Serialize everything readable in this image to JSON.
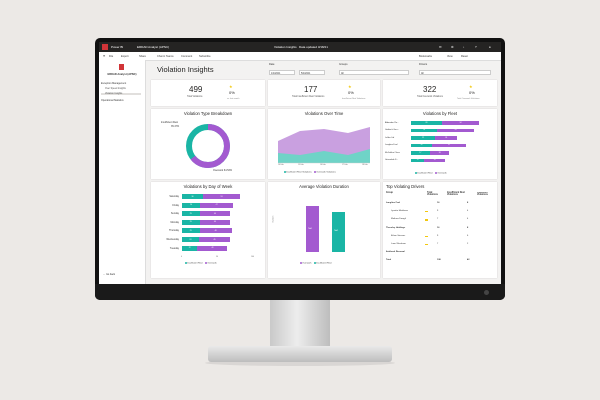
{
  "app": {
    "brand": "Power BI",
    "workspace": "ERDAD Analyst (APNC)",
    "report_title": "Violation Insights",
    "updated": "Data updated 3/18/21",
    "file": "File",
    "export": "Export",
    "share": "Share",
    "chat": "Chat in Teams",
    "comment": "Comment",
    "subscribe": "Subscribe",
    "bookmarks": "Bookmarks",
    "view": "View",
    "reset": "Reset"
  },
  "nav": {
    "title": "ERDAD Analyst (APNC)",
    "section1": "Exception Management",
    "item1": "Over Speed Insights",
    "item2": "Violation Insights",
    "section2": "Operational Statistics",
    "back": "Go back"
  },
  "page": {
    "title": "Violation Insights"
  },
  "slicers": {
    "date_label": "Date",
    "date_from": "1/4/2021",
    "date_to": "5/4/2021",
    "groups_label": "Groups",
    "groups_value": "All",
    "drivers_label": "Drivers",
    "drivers_value": "All"
  },
  "kpis": [
    {
      "value": "499",
      "label": "Total Violations",
      "pct": "0%",
      "sub": "vs. last month"
    },
    {
      "value": "177",
      "label": "Total Insufficient Rest Violations",
      "pct": "0%",
      "sub": "Insufficient Rest Violations"
    },
    {
      "value": "322",
      "label": "Total Overwork Violations",
      "pct": "0%",
      "sub": "Total Overwork Violations"
    }
  ],
  "breakdown": {
    "title": "Violation Type Breakdown",
    "insufficient_label": "Insufficient Rest",
    "insufficient_pct": "35.47%",
    "overwork_label": "Overwork 64.53%"
  },
  "over_time": {
    "title": "Violations Over Time",
    "legend1": "Insufficient Rest Violations",
    "legend2": "Overwork Violations",
    "x_labels": [
      "14 Feb",
      "15 Feb",
      "16 Feb",
      "17 Feb",
      "18 Feb"
    ]
  },
  "by_fleet": {
    "title": "Violations by Fleet",
    "rows": [
      {
        "name": "Aldenden Ra...",
        "a": "28",
        "b": "34"
      },
      {
        "name": "Gatbirch Gen...",
        "a": "24",
        "b": "33"
      },
      {
        "name": "Leffen Ltd",
        "a": "22",
        "b": "20"
      },
      {
        "name": "Langline Fuel",
        "a": "19",
        "b": "31"
      },
      {
        "name": "McGuffee Class",
        "a": "17",
        "b": "18"
      },
      {
        "name": "Grimsdale S...",
        "a": "12",
        "b": "19"
      }
    ],
    "legend1": "Insufficient Rest",
    "legend2": "Overwork"
  },
  "by_day": {
    "title": "Violations by Day of Week",
    "rows": [
      {
        "day": "Saturday",
        "a": "30",
        "b": "53"
      },
      {
        "day": "Friday",
        "a": "26",
        "b": "47"
      },
      {
        "day": "Sunday",
        "a": "25",
        "b": "44"
      },
      {
        "day": "Monday",
        "a": "25",
        "b": "44"
      },
      {
        "day": "Thursday",
        "a": "25",
        "b": "46"
      },
      {
        "day": "Wednesday",
        "a": "24",
        "b": "45"
      },
      {
        "day": "Tuesday",
        "a": "22",
        "b": "43"
      }
    ],
    "axis": [
      "0",
      "50",
      "100"
    ],
    "legend1": "Insufficient Rest",
    "legend2": "Overwork"
  },
  "avg_duration": {
    "title": "Average Violation Duration",
    "bar1": "Tbd1",
    "bar2": "Tbd2",
    "ylabel": "Duration",
    "legend1": "Overwork",
    "legend2": "Insufficient Rest"
  },
  "top_drivers": {
    "title": "Top Violating Drivers",
    "cols": [
      "Group",
      "Total Violations",
      "Insufficient Rest Violations",
      "Overwork Violations"
    ],
    "rows": [
      {
        "name": "Langline Fuel",
        "total": "16",
        "rest": "8",
        "over": "",
        "group": true
      },
      {
        "name": "Lynette Matthews",
        "total": "9",
        "rest": "4",
        "over": "",
        "group": false
      },
      {
        "name": "Mathew Dowgil",
        "total": "7",
        "rest": "4",
        "over": "",
        "group": false
      },
      {
        "name": "Thornley Holdings",
        "total": "16",
        "rest": "8",
        "over": "",
        "group": true
      },
      {
        "name": "Ethan Stevens",
        "total": "9",
        "rest": "6",
        "over": "",
        "group": false
      },
      {
        "name": "Luan Wrexham",
        "total": "7",
        "rest": "2",
        "over": "",
        "group": false
      },
      {
        "name": "Ashbock Renewal",
        "total": "",
        "rest": "",
        "over": "",
        "group": true
      },
      {
        "name": "Total",
        "total": "108",
        "rest": "42",
        "over": "",
        "group": true
      }
    ]
  },
  "colors": {
    "teal": "#1ab5a5",
    "purple": "#a35ad0",
    "accent": "#d13438"
  }
}
